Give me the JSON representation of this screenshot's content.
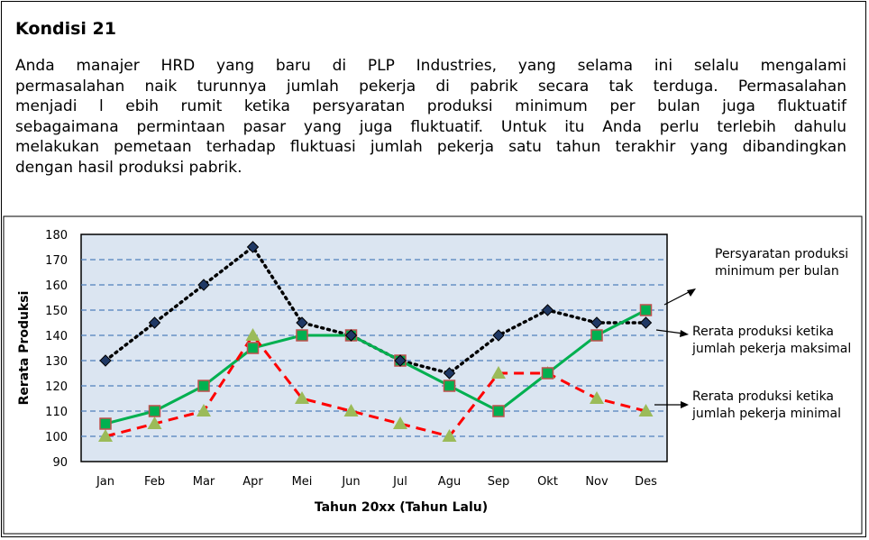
{
  "heading": "Kondisi 21",
  "paragraph_lines": [
    "Anda manajer HRD yang baru di PLP Industries, yang selama ini selalu mengalami",
    "permasalahan naik turunnya jumlah pekerja di pabrik secara tak terduga. Permasalahan",
    "menjadi l ebih rumit ketika persyaratan produksi minimum per bulan juga fluktuatif",
    "sebagaimana permintaan pasar yang juga fluktuatif. Untuk itu Anda perlu terlebih dahulu",
    "melakukan pemetaan terhadap fluktuasi jumlah pekerja satu tahun terakhir yang dibandingkan",
    "dengan hasil produksi pabrik."
  ],
  "annotations": {
    "min_req": [
      "Persyaratan  produksi",
      "minimum per bulan"
    ],
    "max_workers": [
      "Rerata produksi ketika",
      "jumlah pekerja maksimal"
    ],
    "min_workers": [
      "Rerata produksi ketika",
      "jumlah pekerja minimal"
    ]
  },
  "colors": {
    "min_req_line": "#000000",
    "min_req_marker": "#1f3864",
    "max_line": "#00b050",
    "max_marker": "#c0504d",
    "min_line": "#ff0000",
    "min_marker": "#9bbb59",
    "gridline": "#4f81bd",
    "plot_bg": "#dbe5f1"
  },
  "chart_data": {
    "type": "line",
    "xlabel": "Tahun 20xx (Tahun Lalu)",
    "ylabel": "Rerata Produksi",
    "ylim": [
      90,
      180
    ],
    "yticks": [
      90,
      100,
      110,
      120,
      130,
      140,
      150,
      160,
      170,
      180
    ],
    "grid": true,
    "categories": [
      "Jan",
      "Feb",
      "Mar",
      "Apr",
      "Mei",
      "Jun",
      "Jul",
      "Agu",
      "Sep",
      "Okt",
      "Nov",
      "Des"
    ],
    "series": [
      {
        "key": "min_req",
        "values": [
          130,
          145,
          160,
          175,
          145,
          140,
          130,
          125,
          140,
          150,
          145,
          145
        ],
        "line": "dotted",
        "marker": "diamond"
      },
      {
        "key": "max_workers",
        "values": [
          105,
          110,
          120,
          135,
          140,
          140,
          130,
          120,
          110,
          125,
          140,
          150
        ],
        "line": "solid",
        "marker": "square"
      },
      {
        "key": "min_workers",
        "values": [
          100,
          105,
          110,
          140,
          115,
          110,
          105,
          100,
          125,
          125,
          115,
          110
        ],
        "line": "dashed",
        "marker": "triangle"
      }
    ]
  }
}
